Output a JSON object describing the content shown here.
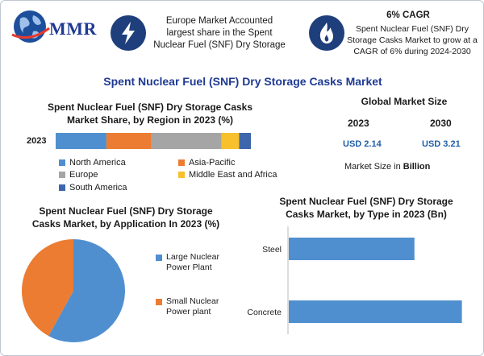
{
  "header": {
    "logo_text": "MMR",
    "fact": "Europe Market Accounted largest share in the Spent Nuclear Fuel (SNF) Dry Storage",
    "cagr_title": "6% CAGR",
    "cagr_text": "Spent Nuclear Fuel (SNF) Dry Storage Casks Market to grow at a CAGR of 6% during 2024-2030",
    "icons": [
      "globe-icon",
      "lightning-icon",
      "flame-icon"
    ]
  },
  "main_title": "Spent Nuclear Fuel (SNF) Dry Storage Casks Market",
  "market_size": {
    "title": "Global Market Size",
    "year1": "2023",
    "year2": "2030",
    "value1": "USD 2.14",
    "value2": "USD 3.21",
    "note_prefix": "Market Size in ",
    "note_bold": "Billion"
  },
  "colors": {
    "blue": "#4f8fd0",
    "orange": "#ec7c31",
    "gray": "#a5a5a5",
    "yellow": "#f7c02c",
    "darkblue": "#3d66ac",
    "navy": "#1e3f7c",
    "accent": "#1f3a93"
  },
  "chart_data": [
    {
      "type": "bar",
      "title": "Spent Nuclear Fuel (SNF) Dry Storage Casks Market Share, by Region in 2023 (%)",
      "orientation": "horizontal-stacked",
      "categories": [
        "2023"
      ],
      "series": [
        {
          "name": "North America",
          "values": [
            26
          ],
          "color": "#4f8fd0"
        },
        {
          "name": "Asia-Pacific",
          "values": [
            23
          ],
          "color": "#ec7c31"
        },
        {
          "name": "Europe",
          "values": [
            36
          ],
          "color": "#a5a5a5"
        },
        {
          "name": "Middle East and Africa",
          "values": [
            9
          ],
          "color": "#f7c02c"
        },
        {
          "name": "South America",
          "values": [
            6
          ],
          "color": "#3d66ac"
        }
      ]
    },
    {
      "type": "pie",
      "title": "Spent Nuclear Fuel (SNF) Dry Storage Casks Market, by Application In 2023 (%)",
      "labels": [
        "Large Nuclear Power Plant",
        "Small Nuclear Power plant"
      ],
      "values": [
        58,
        42
      ],
      "colors": [
        "#4f8fd0",
        "#ec7c31"
      ]
    },
    {
      "type": "bar",
      "title": "Spent Nuclear Fuel (SNF) Dry Storage Casks Market, by Type in 2023 (Bn)",
      "orientation": "horizontal",
      "categories": [
        "Steel",
        "Concrete"
      ],
      "values": [
        0.9,
        1.24
      ],
      "xlim": [
        0,
        1.3
      ],
      "color": "#4f8fd0"
    }
  ]
}
